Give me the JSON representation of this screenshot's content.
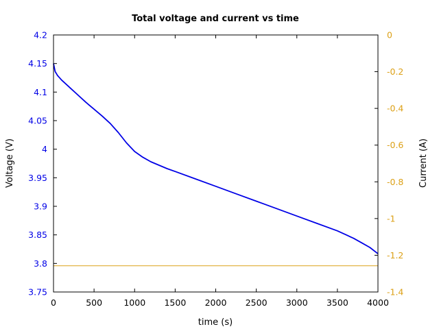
{
  "chart_data": {
    "type": "line",
    "title": "Total voltage and current vs time",
    "xlabel": "time (s)",
    "ylabel": "Voltage (V)",
    "y2label": "Current (A)",
    "xlim": [
      0,
      4000
    ],
    "ylim": [
      3.75,
      4.2
    ],
    "y2lim": [
      -1.4,
      0
    ],
    "xticks": [
      "0",
      "500",
      "1000",
      "1500",
      "2000",
      "2500",
      "3000",
      "3500",
      "4000"
    ],
    "yticks": [
      "3.75",
      "3.8",
      "3.85",
      "3.9",
      "3.95",
      "4",
      "4.05",
      "4.1",
      "4.15",
      "4.2"
    ],
    "y2ticks": [
      "-1.4",
      "-1.2",
      "-1",
      "-0.8",
      "-0.6",
      "-0.4",
      "-0.2",
      "0"
    ],
    "grid": false,
    "colors": {
      "voltage": "#0000e6",
      "current": "#dca016",
      "left_axis": "#0000e6",
      "right_axis": "#dca016"
    },
    "series": [
      {
        "axis": "left",
        "x": [
          0,
          20,
          50,
          100,
          200,
          300,
          400,
          500,
          600,
          700,
          800,
          900,
          1000,
          1100,
          1200,
          1300,
          1400,
          1500,
          1750,
          2000,
          2250,
          2500,
          2750,
          3000,
          3250,
          3500,
          3700,
          3800,
          3900,
          4000
        ],
        "values": [
          4.15,
          4.136,
          4.129,
          4.121,
          4.108,
          4.095,
          4.082,
          4.07,
          4.058,
          4.045,
          4.029,
          4.011,
          3.996,
          3.986,
          3.978,
          3.972,
          3.966,
          3.961,
          3.948,
          3.935,
          3.922,
          3.909,
          3.896,
          3.883,
          3.87,
          3.857,
          3.844,
          3.836,
          3.828,
          3.817
        ]
      },
      {
        "axis": "right",
        "x": [
          0,
          4000
        ],
        "values": [
          -1.257,
          -1.257
        ]
      }
    ]
  }
}
